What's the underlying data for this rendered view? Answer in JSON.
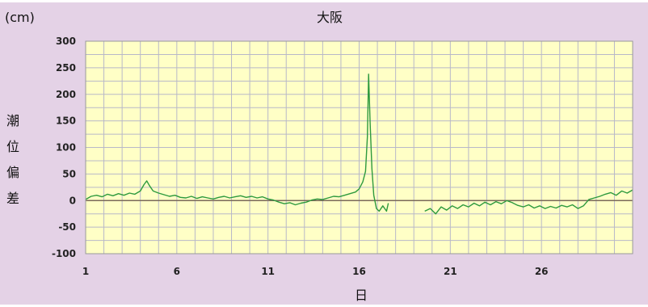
{
  "chart_data": {
    "type": "line",
    "title": "大阪",
    "unit": "(cm)",
    "xlabel": "日",
    "ylabel": "潮位偏差",
    "xlim": [
      1,
      31
    ],
    "ylim": [
      -100,
      300
    ],
    "yticks": [
      300,
      250,
      200,
      150,
      100,
      50,
      0,
      -50,
      -100
    ],
    "xticks": [
      1,
      6,
      11,
      16,
      21,
      26
    ],
    "grid": true,
    "colors": {
      "line": "#2e9a3e",
      "plot_bg": "#ffffc6",
      "frame_bg": "#e4d2e6",
      "grid": "#b8b8c8",
      "zero_line": "#7a6a5a"
    },
    "series": [
      {
        "points": [
          [
            1.0,
            2
          ],
          [
            1.3,
            8
          ],
          [
            1.6,
            10
          ],
          [
            1.9,
            7
          ],
          [
            2.2,
            12
          ],
          [
            2.5,
            9
          ],
          [
            2.8,
            13
          ],
          [
            3.1,
            10
          ],
          [
            3.4,
            14
          ],
          [
            3.7,
            12
          ],
          [
            4.0,
            18
          ],
          [
            4.2,
            30
          ],
          [
            4.35,
            37
          ],
          [
            4.5,
            28
          ],
          [
            4.7,
            18
          ],
          [
            5.0,
            14
          ],
          [
            5.3,
            11
          ],
          [
            5.6,
            8
          ],
          [
            5.9,
            10
          ],
          [
            6.2,
            6
          ],
          [
            6.5,
            5
          ],
          [
            6.8,
            8
          ],
          [
            7.1,
            4
          ],
          [
            7.4,
            7
          ],
          [
            7.7,
            5
          ],
          [
            8.0,
            3
          ],
          [
            8.3,
            6
          ],
          [
            8.6,
            8
          ],
          [
            8.9,
            5
          ],
          [
            9.2,
            7
          ],
          [
            9.5,
            9
          ],
          [
            9.8,
            6
          ],
          [
            10.1,
            8
          ],
          [
            10.4,
            5
          ],
          [
            10.7,
            7
          ],
          [
            11.0,
            3
          ],
          [
            11.3,
            1
          ],
          [
            11.6,
            -3
          ],
          [
            11.9,
            -6
          ],
          [
            12.2,
            -4
          ],
          [
            12.5,
            -8
          ],
          [
            12.8,
            -5
          ],
          [
            13.1,
            -3
          ],
          [
            13.4,
            1
          ],
          [
            13.7,
            3
          ],
          [
            14.0,
            2
          ],
          [
            14.3,
            5
          ],
          [
            14.6,
            8
          ],
          [
            14.9,
            7
          ],
          [
            15.2,
            10
          ],
          [
            15.5,
            13
          ],
          [
            15.8,
            16
          ],
          [
            16.0,
            22
          ],
          [
            16.2,
            35
          ],
          [
            16.35,
            55
          ],
          [
            16.45,
            120
          ],
          [
            16.52,
            238
          ],
          [
            16.6,
            150
          ],
          [
            16.7,
            60
          ],
          [
            16.8,
            10
          ],
          [
            16.95,
            -15
          ],
          [
            17.1,
            -20
          ],
          [
            17.3,
            -10
          ],
          [
            17.5,
            -20
          ],
          [
            17.6,
            -5
          ]
        ]
      },
      {
        "points": [
          [
            19.6,
            -20
          ],
          [
            19.9,
            -15
          ],
          [
            20.2,
            -25
          ],
          [
            20.5,
            -12
          ],
          [
            20.8,
            -18
          ],
          [
            21.1,
            -10
          ],
          [
            21.4,
            -15
          ],
          [
            21.7,
            -8
          ],
          [
            22.0,
            -12
          ],
          [
            22.3,
            -5
          ],
          [
            22.6,
            -10
          ],
          [
            22.9,
            -3
          ],
          [
            23.2,
            -8
          ],
          [
            23.5,
            -2
          ],
          [
            23.8,
            -6
          ],
          [
            24.1,
            0
          ],
          [
            24.4,
            -4
          ],
          [
            24.7,
            -9
          ],
          [
            25.0,
            -12
          ],
          [
            25.3,
            -8
          ],
          [
            25.6,
            -14
          ],
          [
            25.9,
            -10
          ],
          [
            26.2,
            -15
          ],
          [
            26.5,
            -11
          ],
          [
            26.8,
            -14
          ],
          [
            27.1,
            -9
          ],
          [
            27.4,
            -12
          ],
          [
            27.7,
            -8
          ],
          [
            28.0,
            -15
          ],
          [
            28.3,
            -10
          ],
          [
            28.6,
            2
          ],
          [
            28.9,
            5
          ],
          [
            29.2,
            8
          ],
          [
            29.5,
            12
          ],
          [
            29.8,
            15
          ],
          [
            30.1,
            10
          ],
          [
            30.4,
            18
          ],
          [
            30.7,
            14
          ],
          [
            31.0,
            20
          ]
        ]
      }
    ]
  }
}
